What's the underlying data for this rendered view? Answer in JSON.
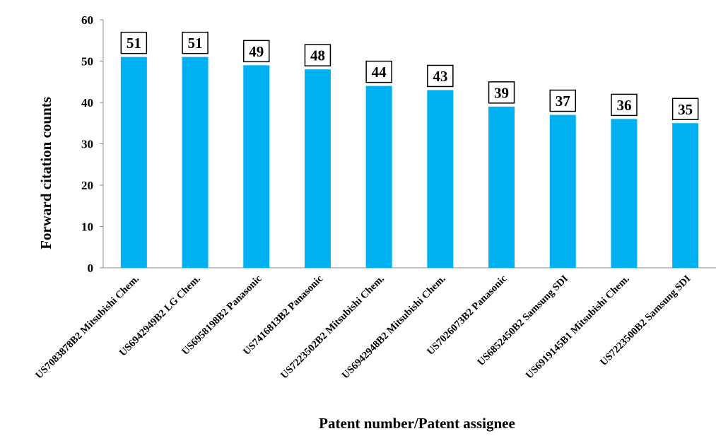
{
  "chart_data": {
    "type": "bar",
    "title": "",
    "xlabel": "Patent number/Patent assignee",
    "ylabel": "Forward citation counts",
    "ylim": [
      0,
      60
    ],
    "yticks": [
      0,
      10,
      20,
      30,
      40,
      50,
      60
    ],
    "grid": false,
    "legend": "none",
    "bar_color": "#00b0f0",
    "label_box_border": "#000000",
    "categories": [
      "US7083878B2 Mitsubishi Chem.",
      "US6942949B2 LG Chem.",
      "US6958198B2 Panasonic",
      "US7416813B2 Panasonic",
      "US7223502B2 Mitsubishi Chem.",
      "US6942948B2 Mitsubishi Chem.",
      "US7026073B2 Panasonic",
      "US6852450B2 Samsung SDI",
      "US6919145B1 Mitsubishi Chem.",
      "US7223500B2 Samsung SDI"
    ],
    "values": [
      51,
      51,
      49,
      48,
      44,
      43,
      39,
      37,
      36,
      35
    ]
  }
}
